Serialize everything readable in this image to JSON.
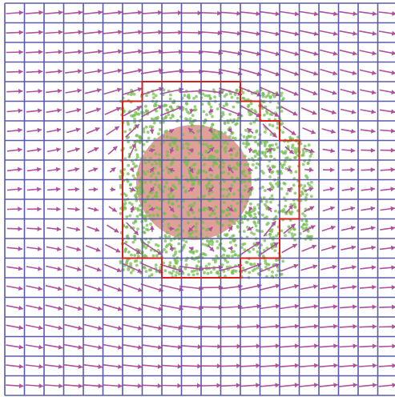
{
  "title": "",
  "colors": {
    "background": "#ffffff",
    "grid_line": "#5a5aa8",
    "vector_arrow": "#b0509c",
    "particle": "#74bf4f",
    "interior_fill": "#d98f86",
    "boundary": "#d21f1f"
  },
  "grid": {
    "columns": 20,
    "rows": 20
  },
  "flow_field": {
    "description_kind": "uniform-flow-past-obstacle",
    "freestream_direction": "rightward",
    "arrow_color_key": "vector_arrow"
  },
  "obstacle": {
    "shape": "stepped-boundary-cells",
    "fill_key": "interior_fill",
    "particle_cloud": true
  }
}
